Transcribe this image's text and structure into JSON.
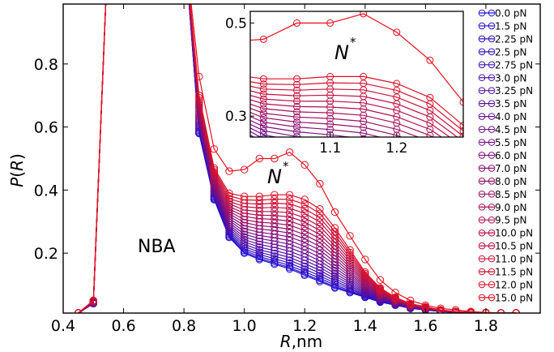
{
  "chart_data": {
    "type": "line",
    "xlabel": "R,nm",
    "ylabel": "P(R)",
    "xlim": [
      0.4,
      1.98
    ],
    "ylim": [
      0.01,
      0.99
    ],
    "xticks": [
      "0.4",
      "0.6",
      "0.8",
      "1.0",
      "1.2",
      "1.4",
      "1.6",
      "1.8"
    ],
    "yticks": [
      "0.2",
      "0.4",
      "0.6",
      "0.8"
    ],
    "annotations": [
      "NBA",
      "N*"
    ],
    "legend_position": "right",
    "colors": {
      "start": "#1a10d8",
      "end": "#e8101e"
    },
    "series_names": [
      "0.0 pN",
      "1.5 pN",
      "2.25 pN",
      "2.5 pN",
      "2.75 pN",
      "3.0 pN",
      "3.25 pN",
      "3.5 pN",
      "4.0 pN",
      "4.5 pN",
      "5.5 pN",
      "6.0 pN",
      "7.0 pN",
      "8.0 pN",
      "8.5 pN",
      "9.0 pN",
      "9.5 pN",
      "10.0 pN",
      "10.5 pN",
      "11.0 pN",
      "11.5 pN",
      "12.0 pN",
      "15.0 pN"
    ],
    "x": [
      0.45,
      0.5,
      0.55,
      0.6,
      0.7,
      0.8,
      0.85,
      0.9,
      0.95,
      1.0,
      1.05,
      1.1,
      1.15,
      1.2,
      1.25,
      1.3,
      1.35,
      1.4,
      1.45,
      1.5,
      1.55,
      1.6,
      1.65,
      1.7,
      1.75,
      1.8,
      1.85,
      1.9
    ],
    "series_15pN": [
      0.01,
      0.05,
      1.2,
      1.2,
      1.2,
      1.2,
      0.76,
      0.53,
      0.46,
      0.465,
      0.5,
      0.5,
      0.52,
      0.48,
      0.42,
      0.33,
      0.255,
      0.18,
      0.115,
      0.075,
      0.05,
      0.035,
      0.025,
      0.02,
      0.015,
      0.012,
      0.01,
      0.01
    ],
    "series_12pN": [
      0.01,
      0.05,
      1.2,
      1.2,
      1.2,
      1.2,
      0.7,
      0.47,
      0.39,
      0.38,
      0.38,
      0.385,
      0.385,
      0.37,
      0.34,
      0.28,
      0.21,
      0.14,
      0.09,
      0.06,
      0.04,
      0.03,
      0.02,
      0.015,
      0.012,
      0.01,
      0.01,
      0.01
    ],
    "series_0pN": [
      0.01,
      0.04,
      1.2,
      1.2,
      1.2,
      1.2,
      0.58,
      0.37,
      0.25,
      0.2,
      0.18,
      0.165,
      0.15,
      0.13,
      0.11,
      0.09,
      0.075,
      0.06,
      0.045,
      0.035,
      0.025,
      0.02,
      0.015,
      0.012,
      0.01,
      0.01,
      0.01,
      0.01
    ],
    "inset": {
      "xlim": [
        0.98,
        1.3
      ],
      "ylim": [
        0.255,
        0.525
      ],
      "xticks": [
        "1.1",
        "1.2"
      ],
      "yticks": [
        "0.3",
        "0.5"
      ],
      "annotation": "N*"
    }
  }
}
